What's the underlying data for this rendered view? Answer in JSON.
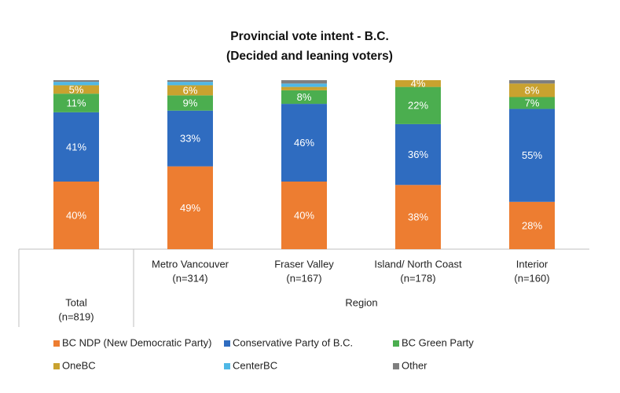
{
  "chart_data": {
    "type": "bar",
    "stacked": true,
    "title": [
      "Provincial vote intent - B.C.",
      "(Decided and leaning voters)"
    ],
    "categories": [
      [
        "Total",
        "(n=819)"
      ],
      [
        "Metro Vancouver",
        "(n=314)"
      ],
      [
        "Fraser Valley",
        "(n=167)"
      ],
      [
        "Island/ North Coast",
        "(n=178)"
      ],
      [
        "Interior",
        "(n=160)"
      ]
    ],
    "group_label": "Region",
    "ylim": [
      0,
      100
    ],
    "series": [
      {
        "name": "BC NDP (New Democratic Party)",
        "color": "#ed7d31",
        "values": [
          40,
          49,
          40,
          38,
          28
        ],
        "value_labels": [
          "40%",
          "49%",
          "40%",
          "38%",
          "28%"
        ]
      },
      {
        "name": "Conservative Party of B.C.",
        "color": "#2f6cc0",
        "values": [
          41,
          33,
          46,
          36,
          55
        ],
        "value_labels": [
          "41%",
          "33%",
          "46%",
          "36%",
          "55%"
        ]
      },
      {
        "name": "BC Green Party",
        "color": "#4bae4f",
        "values": [
          11,
          9,
          8,
          22,
          7
        ],
        "value_labels": [
          "11%",
          "9%",
          "8%",
          "22%",
          "7%"
        ]
      },
      {
        "name": "OneBC",
        "color": "#c9a22f",
        "values": [
          5,
          6,
          2,
          4,
          8
        ],
        "value_labels": [
          "5%",
          "6%",
          null,
          "4%",
          "8%"
        ]
      },
      {
        "name": "CenterBC",
        "color": "#4fb8e6",
        "values": [
          2,
          2,
          2,
          0,
          0
        ],
        "value_labels": [
          null,
          null,
          null,
          null,
          null
        ]
      },
      {
        "name": "Other",
        "color": "#7f7f7f",
        "values": [
          1,
          1,
          2,
          0,
          2
        ],
        "value_labels": [
          null,
          null,
          null,
          null,
          null
        ]
      }
    ]
  }
}
